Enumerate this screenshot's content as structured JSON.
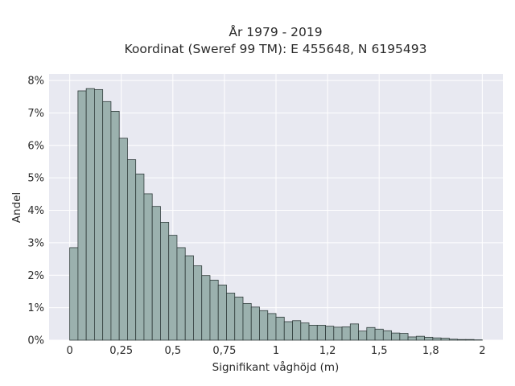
{
  "chart_data": {
    "type": "bar",
    "title": "År 1979 - 2019",
    "subtitle": "Koordinat (Sweref 99 TM): E 455648, N 6195493",
    "xlabel": "Signifikant våghöjd (m)",
    "ylabel": "Andel",
    "bin_width": 0.04,
    "x_start": 0,
    "values": [
      2.85,
      7.68,
      7.75,
      7.72,
      7.35,
      7.05,
      6.22,
      5.56,
      5.12,
      4.51,
      4.12,
      3.63,
      3.23,
      2.85,
      2.6,
      2.29,
      1.99,
      1.85,
      1.7,
      1.45,
      1.33,
      1.13,
      1.02,
      0.91,
      0.82,
      0.71,
      0.57,
      0.6,
      0.53,
      0.46,
      0.46,
      0.43,
      0.4,
      0.41,
      0.5,
      0.28,
      0.39,
      0.34,
      0.29,
      0.22,
      0.21,
      0.1,
      0.12,
      0.09,
      0.07,
      0.06,
      0.03,
      0.02,
      0.02,
      0.01
    ],
    "xlim": [
      -0.1,
      2.1
    ],
    "ylim": [
      0,
      8.2
    ],
    "x_ticks": [
      0,
      0.25,
      0.5,
      0.75,
      1,
      1.25,
      1.5,
      1.75,
      2
    ],
    "x_tick_labels": [
      "0",
      "0,25",
      "0,5",
      "0,75",
      "1",
      "1,2",
      "1,5",
      "1,8",
      "2"
    ],
    "y_ticks": [
      0,
      1,
      2,
      3,
      4,
      5,
      6,
      7,
      8
    ],
    "y_tick_labels": [
      "0%",
      "1%",
      "2%",
      "3%",
      "4%",
      "5%",
      "6%",
      "7%",
      "8%"
    ],
    "grid": true,
    "colors": {
      "bar_fill": "#9bb1ae",
      "bar_stroke": "#2f3b3a",
      "plot_background": "#e8e9f1",
      "grid": "#ffffff"
    }
  }
}
